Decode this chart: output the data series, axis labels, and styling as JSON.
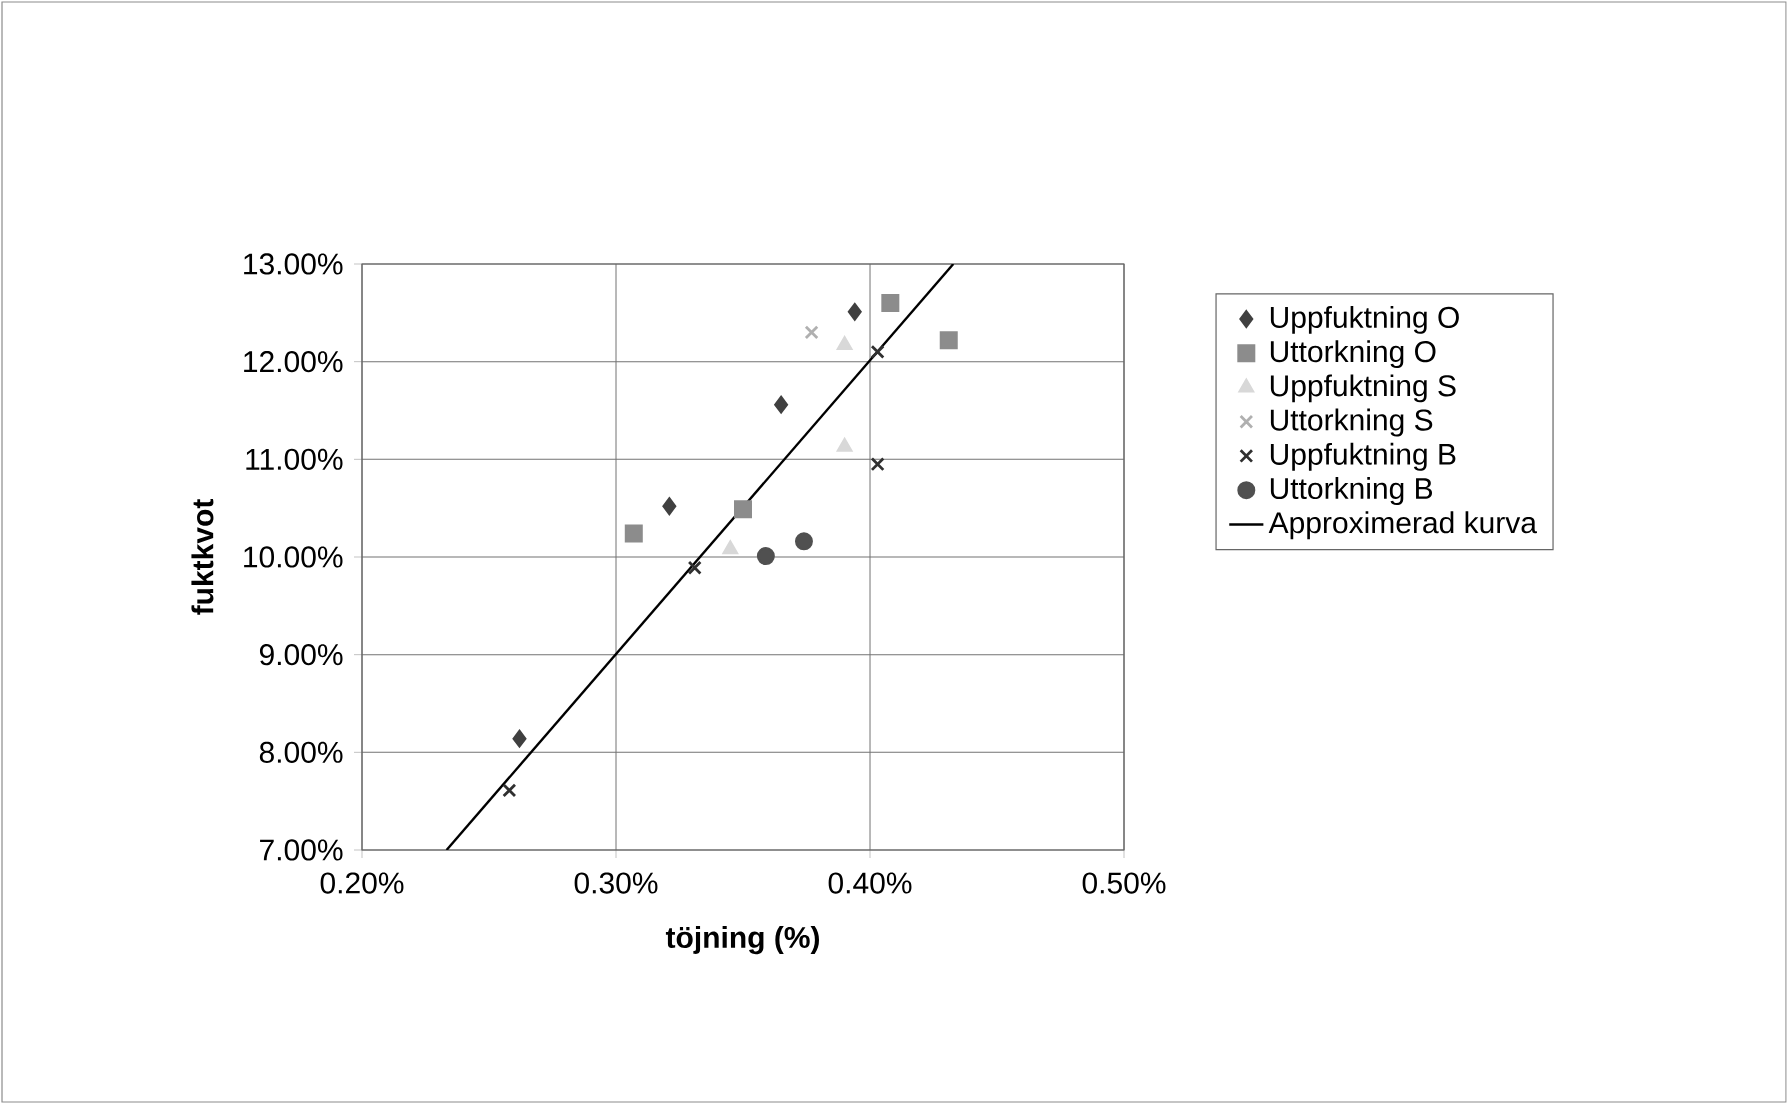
{
  "chart_data": {
    "type": "scatter",
    "xlabel": "töjning (%)",
    "ylabel": "fuktkvot",
    "xlim": [
      0.2,
      0.5
    ],
    "ylim": [
      7,
      13
    ],
    "xticks": [
      {
        "value": 0.2,
        "label": "0.20%"
      },
      {
        "value": 0.3,
        "label": "0.30%"
      },
      {
        "value": 0.4,
        "label": "0.40%"
      },
      {
        "value": 0.5,
        "label": "0.50%"
      }
    ],
    "yticks": [
      {
        "value": 7,
        "label": "7.00%"
      },
      {
        "value": 8,
        "label": "8.00%"
      },
      {
        "value": 9,
        "label": "9.00%"
      },
      {
        "value": 10,
        "label": "10.00%"
      },
      {
        "value": 11,
        "label": "11.00%"
      },
      {
        "value": 12,
        "label": "12.00%"
      },
      {
        "value": 13,
        "label": "13.00%"
      }
    ],
    "grid": true,
    "legend": "right",
    "series": [
      {
        "name": "Uppfuktning O",
        "color": "#404040",
        "marker": "diamond",
        "x": [
          0.394,
          0.365,
          0.321,
          0.262
        ],
        "values": [
          12.51,
          11.56,
          10.52,
          8.14
        ]
      },
      {
        "name": "Uttorkning O",
        "color": "#8c8c8c",
        "marker": "square",
        "x": [
          0.408,
          0.431,
          0.35,
          0.307
        ],
        "values": [
          12.6,
          12.22,
          10.49,
          10.24
        ]
      },
      {
        "name": "Uppfuktning S",
        "color": "#d8d8d8",
        "marker": "triangle",
        "x": [
          0.39,
          0.39,
          0.345
        ],
        "values": [
          12.17,
          11.13,
          10.08
        ]
      },
      {
        "name": "Uttorkning S",
        "color": "#b0b0b0",
        "marker": "cross",
        "x": [
          0.377
        ],
        "values": [
          12.3
        ]
      },
      {
        "name": "Uppfuktning B",
        "color": "#303030",
        "marker": "cross",
        "x": [
          0.403,
          0.403,
          0.331,
          0.258
        ],
        "values": [
          12.1,
          10.95,
          9.89,
          7.61
        ]
      },
      {
        "name": "Uttorkning B",
        "color": "#505050",
        "marker": "circle",
        "x": [
          0.359,
          0.374
        ],
        "values": [
          10.01,
          10.16
        ]
      },
      {
        "name": "Approximerad kurva",
        "type": "line",
        "color": "#000000",
        "marker": "none",
        "x": [
          0.2333,
          0.4328
        ],
        "values": [
          7,
          13
        ]
      }
    ]
  }
}
